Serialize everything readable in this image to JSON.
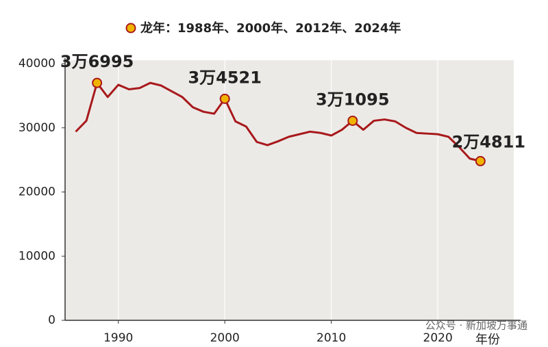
{
  "chart_data": {
    "type": "line",
    "x_label": "年份",
    "watermark": "公众号 · 新加坡万事通",
    "series": [
      {
        "color": "#a8191c",
        "x": [
          1986,
          1987,
          1988,
          1989,
          1990,
          1991,
          1992,
          1993,
          1994,
          1995,
          1996,
          1997,
          1998,
          1999,
          2000,
          2001,
          2002,
          2003,
          2004,
          2005,
          2006,
          2007,
          2008,
          2009,
          2010,
          2011,
          2012,
          2013,
          2014,
          2015,
          2016,
          2017,
          2018,
          2019,
          2020,
          2021,
          2022,
          2023,
          2024
        ],
        "values": [
          29400,
          31100,
          36995,
          34800,
          36700,
          36000,
          36200,
          37000,
          36600,
          35700,
          34800,
          33200,
          32500,
          32200,
          34521,
          31000,
          30200,
          27800,
          27300,
          27900,
          28600,
          29000,
          29400,
          29200,
          28800,
          29700,
          31095,
          29700,
          31100,
          31300,
          31000,
          30000,
          29200,
          29100,
          29000,
          28600,
          27000,
          25200,
          24811
        ]
      },
      {
        "name": "龙年：1988年、2000年、2012年、2024年",
        "color": "#f0b400",
        "marker_edge": "#a8191c",
        "x": [
          1988,
          2000,
          2012,
          2024
        ],
        "values": [
          36995,
          34521,
          31095,
          24811
        ],
        "value_labels": [
          "3万6995",
          "3万4521",
          "3万1095",
          "2万4811"
        ]
      }
    ],
    "xlim": [
      1985,
      2027
    ],
    "xticks": [
      1990,
      2000,
      2010,
      2020
    ],
    "ylim": [
      0,
      40000
    ],
    "yticks": [
      0,
      10000,
      20000,
      30000,
      40000
    ],
    "grid": true
  }
}
